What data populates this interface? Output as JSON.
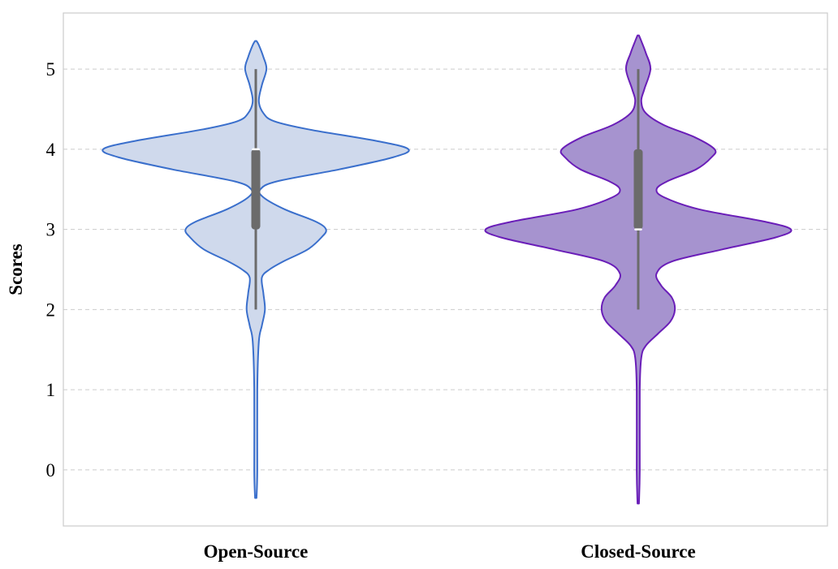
{
  "chart_data": {
    "type": "violin",
    "title": "",
    "xlabel": "",
    "ylabel": "Scores",
    "categories": [
      "Open-Source",
      "Closed-Source"
    ],
    "ylim": [
      -0.7,
      5.7
    ],
    "yticks": [
      0,
      1,
      2,
      3,
      4,
      5
    ],
    "grid": "horizontal-dashed",
    "colors": {
      "Open-Source": {
        "fill": "#cfd9ec",
        "edge": "#3a6fcc"
      },
      "Closed-Source": {
        "fill": "#a693cf",
        "edge": "#6a1eb8"
      },
      "box": "#6b6b6b",
      "median": "#ffffff",
      "grid": "#cccccc",
      "frame": "#cccccc"
    },
    "violins": [
      {
        "name": "Open-Source",
        "min": -0.35,
        "max": 5.35,
        "whisker_low": 2.0,
        "whisker_high": 5.0,
        "q1": 3.0,
        "median": 4.0,
        "q3": 4.0,
        "density": [
          [
            -0.35,
            0.0
          ],
          [
            0.0,
            0.01
          ],
          [
            1.0,
            0.01
          ],
          [
            1.6,
            0.02
          ],
          [
            1.8,
            0.04
          ],
          [
            2.0,
            0.06
          ],
          [
            2.2,
            0.05
          ],
          [
            2.4,
            0.04
          ],
          [
            2.5,
            0.09
          ],
          [
            2.6,
            0.18
          ],
          [
            2.75,
            0.34
          ],
          [
            2.9,
            0.43
          ],
          [
            3.0,
            0.46
          ],
          [
            3.1,
            0.39
          ],
          [
            3.25,
            0.19
          ],
          [
            3.4,
            0.05
          ],
          [
            3.5,
            0.03
          ],
          [
            3.6,
            0.14
          ],
          [
            3.75,
            0.55
          ],
          [
            3.9,
            0.9
          ],
          [
            4.0,
            1.0
          ],
          [
            4.1,
            0.8
          ],
          [
            4.25,
            0.34
          ],
          [
            4.35,
            0.12
          ],
          [
            4.45,
            0.05
          ],
          [
            4.6,
            0.02
          ],
          [
            4.8,
            0.04
          ],
          [
            5.0,
            0.07
          ],
          [
            5.15,
            0.05
          ],
          [
            5.3,
            0.02
          ],
          [
            5.35,
            0.0
          ]
        ]
      },
      {
        "name": "Closed-Source",
        "min": -0.42,
        "max": 5.42,
        "whisker_low": 2.0,
        "whisker_high": 5.0,
        "q1": 3.0,
        "median": 3.0,
        "q3": 4.0,
        "density": [
          [
            -0.42,
            0.0
          ],
          [
            0.0,
            0.01
          ],
          [
            1.0,
            0.01
          ],
          [
            1.4,
            0.02
          ],
          [
            1.55,
            0.05
          ],
          [
            1.7,
            0.13
          ],
          [
            1.85,
            0.21
          ],
          [
            2.0,
            0.24
          ],
          [
            2.15,
            0.22
          ],
          [
            2.3,
            0.15
          ],
          [
            2.45,
            0.12
          ],
          [
            2.6,
            0.22
          ],
          [
            2.75,
            0.55
          ],
          [
            2.9,
            0.9
          ],
          [
            3.0,
            1.0
          ],
          [
            3.1,
            0.82
          ],
          [
            3.25,
            0.4
          ],
          [
            3.4,
            0.17
          ],
          [
            3.5,
            0.12
          ],
          [
            3.6,
            0.19
          ],
          [
            3.75,
            0.38
          ],
          [
            3.9,
            0.48
          ],
          [
            4.0,
            0.5
          ],
          [
            4.15,
            0.37
          ],
          [
            4.3,
            0.17
          ],
          [
            4.45,
            0.05
          ],
          [
            4.6,
            0.02
          ],
          [
            4.75,
            0.04
          ],
          [
            5.0,
            0.08
          ],
          [
            5.2,
            0.05
          ],
          [
            5.35,
            0.02
          ],
          [
            5.42,
            0.0
          ]
        ]
      }
    ]
  }
}
